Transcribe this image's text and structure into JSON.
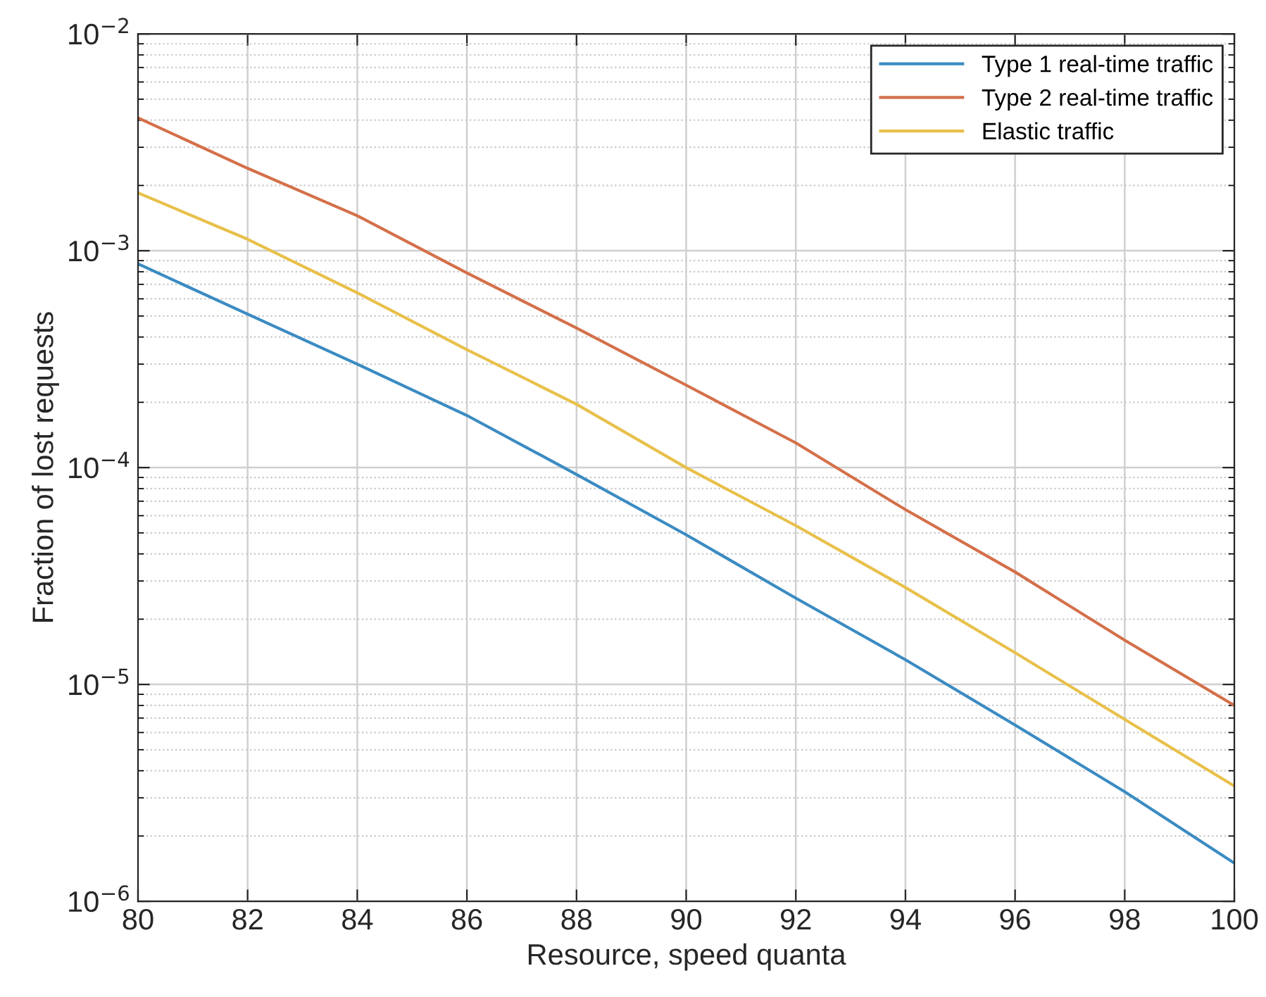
{
  "chart_data": {
    "type": "line",
    "xlabel": "Resource, speed quanta",
    "ylabel": "Fraction of lost requests",
    "x": [
      80,
      82,
      84,
      86,
      88,
      90,
      92,
      94,
      96,
      98,
      100
    ],
    "series": [
      {
        "name": "Type 1 real-time traffic",
        "color": "#3b8bc2",
        "values": [
          0.00087,
          0.00051,
          0.0003,
          0.000174,
          9.3e-05,
          4.9e-05,
          2.5e-05,
          1.3e-05,
          6.5e-06,
          3.2e-06,
          1.5e-06
        ]
      },
      {
        "name": "Type 2 real-time traffic",
        "color": "#d4704a",
        "values": [
          0.0041,
          0.0024,
          0.00145,
          0.00079,
          0.00044,
          0.00024,
          0.00013,
          6.4e-05,
          3.3e-05,
          1.6e-05,
          8e-06
        ]
      },
      {
        "name": "Elastic traffic",
        "color": "#e8c04a",
        "values": [
          0.00185,
          0.00113,
          0.00064,
          0.00035,
          0.000196,
          0.0001,
          5.4e-05,
          2.8e-05,
          1.4e-05,
          6.9e-06,
          3.4e-06
        ]
      }
    ],
    "log": "y",
    "xlim": [
      80,
      100
    ],
    "ylim": [
      1e-06,
      0.01
    ],
    "xticks": [
      80,
      82,
      84,
      86,
      88,
      90,
      92,
      94,
      96,
      98,
      100
    ],
    "yticks": [
      {
        "value": 1e-06,
        "label": "10$^{−6}$"
      },
      {
        "value": 1e-05,
        "label": "10$^{−5}$"
      },
      {
        "value": 0.0001,
        "label": "10$^{−4}$"
      },
      {
        "value": 0.001,
        "label": "10$^{−3}$"
      },
      {
        "value": 0.01,
        "label": "10$^{−2}$"
      }
    ],
    "grid": true,
    "legend": "top right",
    "marker": "none",
    "line_style": "solid"
  }
}
